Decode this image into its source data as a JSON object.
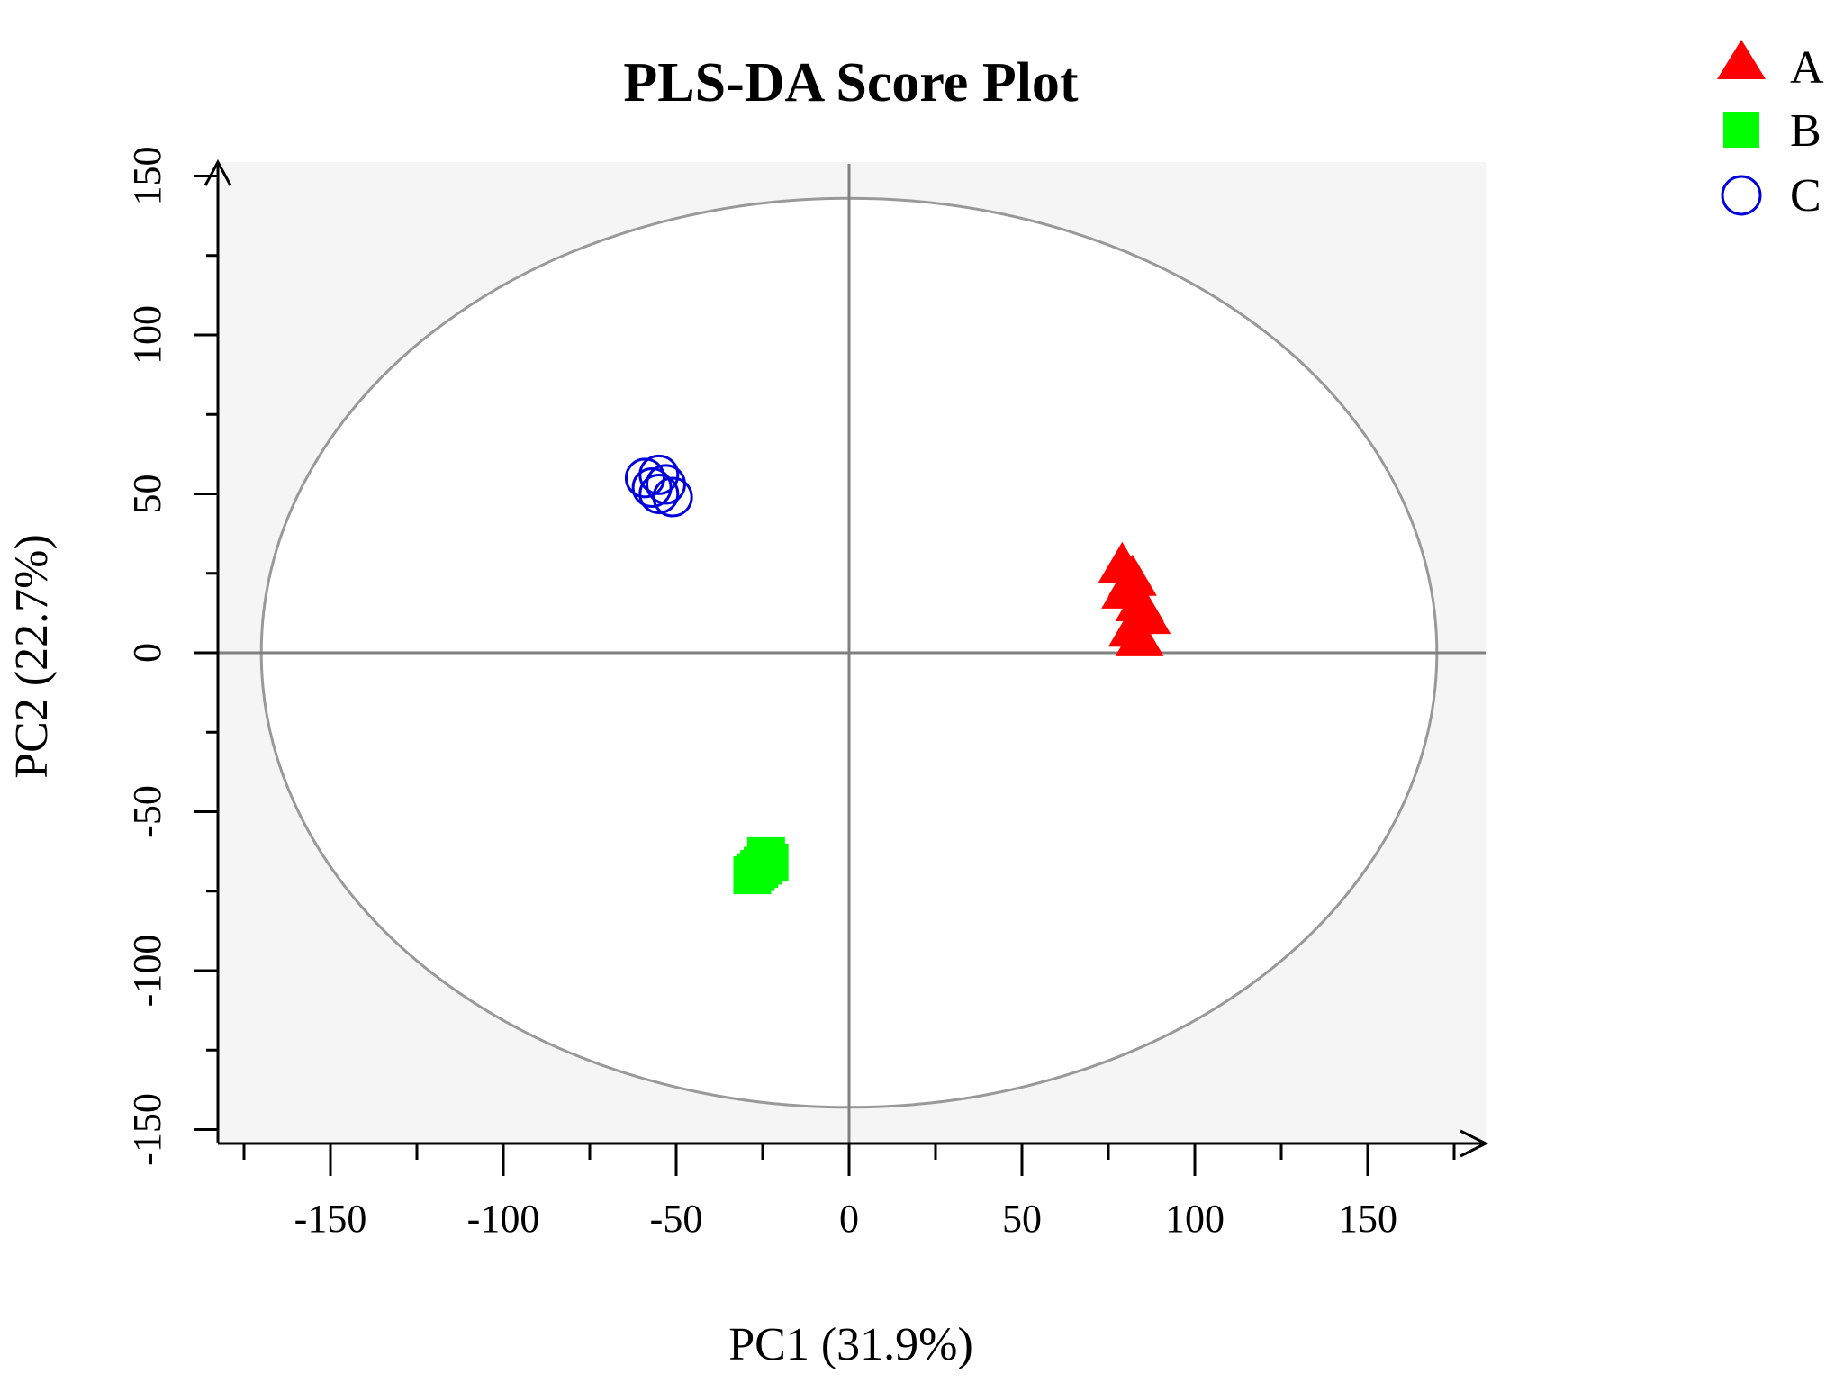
{
  "chart_data": {
    "type": "scatter",
    "title": "PLS-DA Score Plot",
    "xlabel": "PC1 (31.9%)",
    "ylabel": "PC2 (22.7%)",
    "xlim": [
      -185,
      183
    ],
    "ylim": [
      -155,
      155
    ],
    "xticks": [
      -150,
      -100,
      -50,
      0,
      50,
      100,
      150
    ],
    "yticks": [
      -150,
      -100,
      -50,
      0,
      50,
      100,
      150
    ],
    "grid": false,
    "legend_position": "top-right",
    "confidence_ellipse": {
      "center": [
        0,
        0
      ],
      "rx": 170,
      "ry": 143
    },
    "series": [
      {
        "name": "A",
        "marker": "triangle",
        "color": "#ff0000",
        "points": [
          [
            79,
            27
          ],
          [
            80,
            19
          ],
          [
            82,
            23
          ],
          [
            84,
            15
          ],
          [
            86,
            11
          ],
          [
            82,
            7
          ],
          [
            84,
            4
          ]
        ]
      },
      {
        "name": "B",
        "marker": "square",
        "color": "#00ff00",
        "points": [
          [
            -24,
            -64
          ],
          [
            -25,
            -67
          ],
          [
            -27,
            -69
          ],
          [
            -28,
            -70
          ],
          [
            -23,
            -66
          ],
          [
            -26,
            -68
          ]
        ]
      },
      {
        "name": "C",
        "marker": "circle",
        "color": "#0000dd",
        "points": [
          [
            -59,
            55
          ],
          [
            -55,
            56
          ],
          [
            -57,
            52
          ],
          [
            -53,
            53
          ],
          [
            -55,
            50
          ],
          [
            -51,
            49
          ]
        ]
      }
    ]
  }
}
